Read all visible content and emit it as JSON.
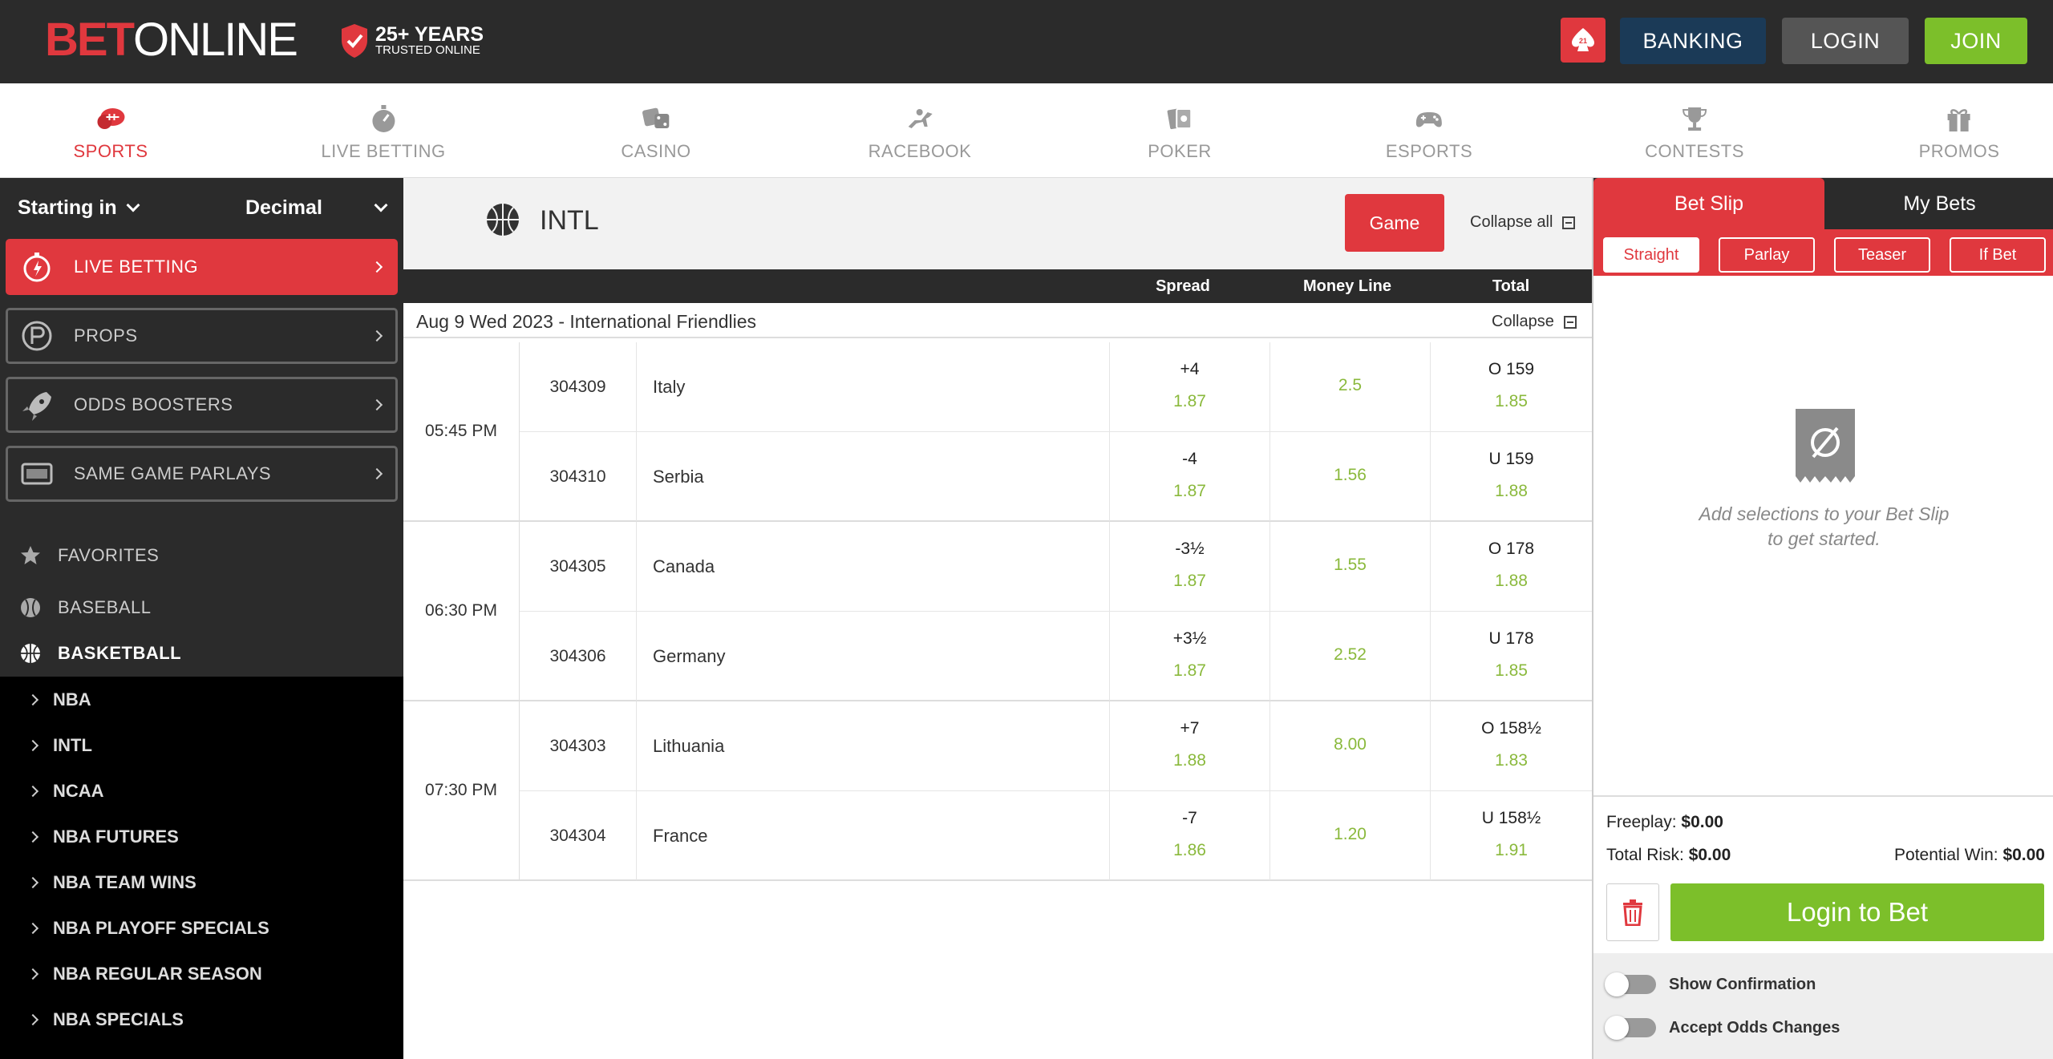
{
  "header": {
    "logo_bet": "BET",
    "logo_online": "ONLINE",
    "trust_line1": "25+ YEARS",
    "trust_line2": "TRUSTED ONLINE",
    "age_badge": "21",
    "banking": "BANKING",
    "login": "LOGIN",
    "join": "JOIN"
  },
  "nav": [
    {
      "label": "SPORTS",
      "icon": "sports-icon"
    },
    {
      "label": "LIVE BETTING",
      "icon": "stopwatch-icon"
    },
    {
      "label": "CASINO",
      "icon": "dice-icon"
    },
    {
      "label": "RACEBOOK",
      "icon": "horse-icon"
    },
    {
      "label": "POKER",
      "icon": "cards-icon"
    },
    {
      "label": "ESPORTS",
      "icon": "gamepad-icon"
    },
    {
      "label": "CONTESTS",
      "icon": "trophy-icon"
    },
    {
      "label": "PROMOS",
      "icon": "gift-icon"
    }
  ],
  "sidebar": {
    "starting_in": "Starting in",
    "odds_format": "Decimal",
    "boxes": [
      "LIVE BETTING",
      "PROPS",
      "ODDS BOOSTERS",
      "SAME GAME PARLAYS"
    ],
    "sports": [
      "FAVORITES",
      "BASEBALL",
      "BASKETBALL"
    ],
    "sub_items": [
      "NBA",
      "INTL",
      "NCAA",
      "NBA FUTURES",
      "NBA TEAM WINS",
      "NBA PLAYOFF SPECIALS",
      "NBA REGULAR SEASON",
      "NBA SPECIALS"
    ]
  },
  "main": {
    "league": "INTL",
    "game_btn": "Game",
    "collapse_all": "Collapse all",
    "col_spread": "Spread",
    "col_moneyline": "Money Line",
    "col_total": "Total",
    "date_label": "Aug 9 Wed 2023  - International Friendlies",
    "collapse": "Collapse",
    "games": [
      {
        "time": "05:45 PM",
        "teams": [
          {
            "rot": "304309",
            "name": "Italy",
            "spread": "+4",
            "spread_odds": "1.87",
            "ml": "2.5",
            "total": "O 159",
            "total_odds": "1.85"
          },
          {
            "rot": "304310",
            "name": "Serbia",
            "spread": "-4",
            "spread_odds": "1.87",
            "ml": "1.56",
            "total": "U 159",
            "total_odds": "1.88"
          }
        ]
      },
      {
        "time": "06:30 PM",
        "teams": [
          {
            "rot": "304305",
            "name": "Canada",
            "spread": "-3½",
            "spread_odds": "1.87",
            "ml": "1.55",
            "total": "O 178",
            "total_odds": "1.88"
          },
          {
            "rot": "304306",
            "name": "Germany",
            "spread": "+3½",
            "spread_odds": "1.87",
            "ml": "2.52",
            "total": "U 178",
            "total_odds": "1.85"
          }
        ]
      },
      {
        "time": "07:30 PM",
        "teams": [
          {
            "rot": "304303",
            "name": "Lithuania",
            "spread": "+7",
            "spread_odds": "1.88",
            "ml": "8.00",
            "total": "O 158½",
            "total_odds": "1.83"
          },
          {
            "rot": "304304",
            "name": "France",
            "spread": "-7",
            "spread_odds": "1.86",
            "ml": "1.20",
            "total": "U 158½",
            "total_odds": "1.91"
          }
        ]
      }
    ]
  },
  "betslip": {
    "tab_betslip": "Bet Slip",
    "tab_mybets": "My Bets",
    "types": [
      "Straight",
      "Parlay",
      "Teaser",
      "If Bet"
    ],
    "empty_line1": "Add selections to your Bet Slip",
    "empty_line2": "to get started.",
    "freeplay_label": "Freeplay:",
    "freeplay_value": "$0.00",
    "total_risk_label": "Total Risk:",
    "total_risk_value": "$0.00",
    "potential_win_label": "Potential Win:",
    "potential_win_value": "$0.00",
    "login_to_bet": "Login to Bet",
    "show_confirmation": "Show Confirmation",
    "accept_odds": "Accept Odds Changes"
  },
  "colors": {
    "brand_red": "#e0383e",
    "join_green": "#7cbf2a",
    "odds_green": "#8ab93c",
    "banking_blue": "#1b3a57",
    "dark": "#2b2b2b"
  }
}
